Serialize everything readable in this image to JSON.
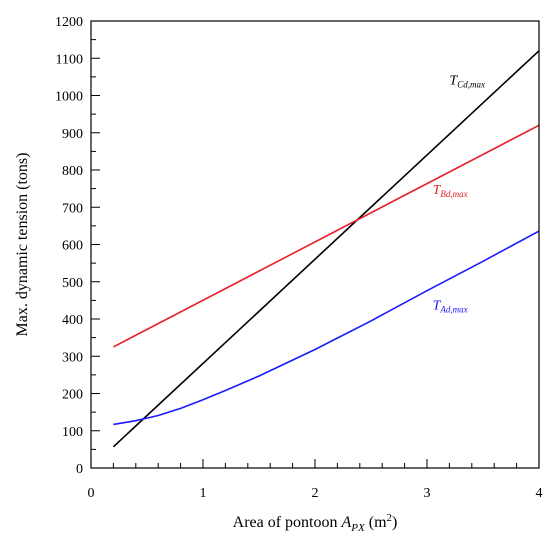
{
  "chart_data": {
    "type": "line",
    "xlabel": {
      "prefix": "Area of pontoon ",
      "symbol": "A",
      "subscript": "PX",
      "unit_open": " (m",
      "unit_sup": "2",
      "unit_close": ")"
    },
    "ylabel": "Max. dynamic tension (tons)",
    "xlim": [
      0,
      4
    ],
    "ylim": [
      0,
      1200
    ],
    "x_ticks": [
      0,
      1,
      2,
      3,
      4
    ],
    "x_minor_step": 0.2,
    "y_ticks": [
      0,
      100,
      200,
      300,
      400,
      500,
      600,
      700,
      800,
      900,
      1000,
      1100,
      1200
    ],
    "y_minor_step": 50,
    "grid": false,
    "series": [
      {
        "symbol": "T",
        "subscript": "Cd,max",
        "color": "#000000",
        "label_pos": {
          "x": 3.2,
          "y": 1030
        },
        "points": [
          [
            0.2,
            57
          ],
          [
            4.0,
            1120
          ]
        ]
      },
      {
        "symbol": "T",
        "subscript": "Bd,max",
        "color": "#e8202a",
        "label_pos": {
          "x": 3.05,
          "y": 735
        },
        "points": [
          [
            0.2,
            325
          ],
          [
            4.0,
            920
          ]
        ]
      },
      {
        "symbol": "T",
        "subscript": "Ad,max",
        "color": "#1a1aff",
        "label_pos": {
          "x": 3.05,
          "y": 425
        },
        "points": [
          [
            0.2,
            117
          ],
          [
            0.3,
            122
          ],
          [
            0.4,
            127
          ],
          [
            0.5,
            134
          ],
          [
            0.6,
            141
          ],
          [
            0.8,
            160
          ],
          [
            1.0,
            183
          ],
          [
            1.2,
            208
          ],
          [
            1.5,
            247
          ],
          [
            2.0,
            318
          ],
          [
            2.5,
            395
          ],
          [
            3.0,
            476
          ],
          [
            3.5,
            555
          ],
          [
            4.0,
            636
          ]
        ]
      }
    ]
  }
}
